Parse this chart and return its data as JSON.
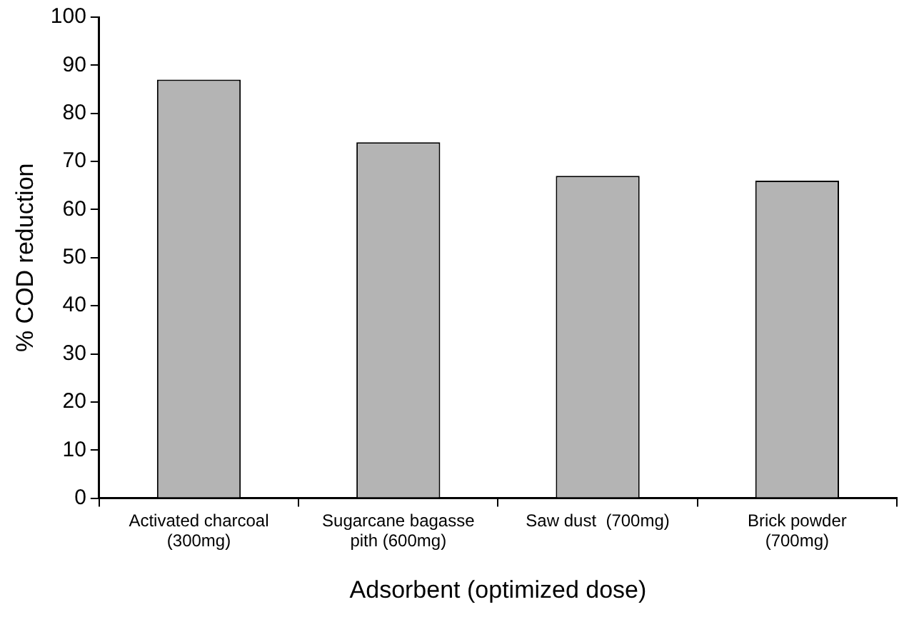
{
  "chart_data": {
    "type": "bar",
    "xlabel": "Adsorbent (optimized dose)",
    "ylabel": "% COD reduction",
    "categories": [
      "Activated charcoal\n(300mg)",
      "Sugarcane bagasse\npith (600mg)",
      "Saw dust  (700mg)",
      "Brick powder\n(700mg)"
    ],
    "values": [
      87,
      74,
      67,
      66
    ],
    "color": "#b4b4b4",
    "ylim": [
      0,
      100
    ],
    "yticks": [
      0,
      10,
      20,
      30,
      40,
      50,
      60,
      70,
      80,
      90,
      100
    ],
    "grid": false,
    "legend": false
  }
}
